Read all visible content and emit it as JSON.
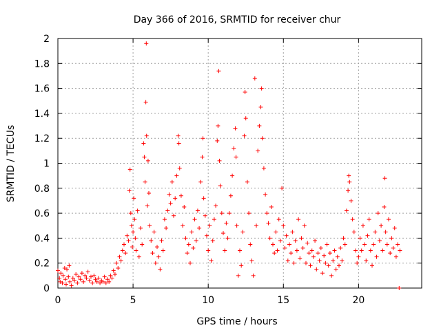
{
  "chart_data": {
    "type": "scatter",
    "title": "Day 366 of 2016, SRMTID for receiver chur",
    "xlabel": "GPS time / hours",
    "ylabel": "SRMTID / TECUs",
    "xlim": [
      0,
      24.2
    ],
    "ylim": [
      0,
      2
    ],
    "xticks": [
      0,
      5,
      10,
      15,
      20
    ],
    "xtick_labels": [
      "0",
      "5",
      "10",
      "15",
      "20"
    ],
    "yticks": [
      0,
      0.2,
      0.4,
      0.6,
      0.8,
      1,
      1.2,
      1.4,
      1.6,
      1.8,
      2
    ],
    "ytick_labels": [
      "0",
      "0.2",
      "0.4",
      "0.6",
      "0.8",
      "1",
      "1.2",
      "1.4",
      "1.6",
      "1.8",
      "2"
    ],
    "grid": true,
    "marker": "+",
    "color": "#ff0000",
    "series": [
      {
        "name": "SRMTID",
        "points": [
          [
            0.0,
            0.14
          ],
          [
            0.1,
            0.08
          ],
          [
            0.15,
            0.05
          ],
          [
            0.2,
            0.12
          ],
          [
            0.3,
            0.04
          ],
          [
            0.35,
            0.1
          ],
          [
            0.45,
            0.16
          ],
          [
            0.5,
            0.07
          ],
          [
            0.55,
            0.03
          ],
          [
            0.6,
            0.15
          ],
          [
            0.7,
            0.09
          ],
          [
            0.75,
            0.18
          ],
          [
            0.8,
            0.05
          ],
          [
            0.9,
            0.02
          ],
          [
            1.0,
            0.08
          ],
          [
            1.1,
            0.06
          ],
          [
            1.2,
            0.11
          ],
          [
            1.3,
            0.04
          ],
          [
            1.4,
            0.09
          ],
          [
            1.5,
            0.07
          ],
          [
            1.6,
            0.12
          ],
          [
            1.7,
            0.05
          ],
          [
            1.8,
            0.1
          ],
          [
            1.9,
            0.08
          ],
          [
            2.0,
            0.13
          ],
          [
            2.1,
            0.06
          ],
          [
            2.2,
            0.09
          ],
          [
            2.3,
            0.04
          ],
          [
            2.4,
            0.1
          ],
          [
            2.5,
            0.07
          ],
          [
            2.6,
            0.05
          ],
          [
            2.7,
            0.08
          ],
          [
            2.8,
            0.04
          ],
          [
            2.9,
            0.06
          ],
          [
            3.0,
            0.05
          ],
          [
            3.1,
            0.09
          ],
          [
            3.2,
            0.04
          ],
          [
            3.3,
            0.07
          ],
          [
            3.4,
            0.05
          ],
          [
            3.5,
            0.1
          ],
          [
            3.6,
            0.08
          ],
          [
            3.7,
            0.14
          ],
          [
            3.8,
            0.11
          ],
          [
            3.9,
            0.2
          ],
          [
            4.0,
            0.16
          ],
          [
            4.1,
            0.25
          ],
          [
            4.2,
            0.22
          ],
          [
            4.3,
            0.3
          ],
          [
            4.4,
            0.35
          ],
          [
            4.5,
            0.28
          ],
          [
            4.6,
            0.42
          ],
          [
            4.7,
            0.38
          ],
          [
            4.75,
            0.78
          ],
          [
            4.8,
            0.95
          ],
          [
            4.85,
            0.6
          ],
          [
            4.9,
            0.5
          ],
          [
            4.95,
            0.33
          ],
          [
            5.0,
            0.45
          ],
          [
            5.05,
            0.72
          ],
          [
            5.1,
            0.55
          ],
          [
            5.15,
            0.4
          ],
          [
            5.2,
            0.3
          ],
          [
            5.3,
            0.62
          ],
          [
            5.4,
            0.25
          ],
          [
            5.5,
            0.48
          ],
          [
            5.6,
            0.35
          ],
          [
            5.7,
            1.16
          ],
          [
            5.75,
            1.05
          ],
          [
            5.8,
            0.85
          ],
          [
            5.85,
            1.49
          ],
          [
            5.88,
            1.96
          ],
          [
            5.9,
            1.22
          ],
          [
            5.95,
            0.66
          ],
          [
            6.0,
            1.02
          ],
          [
            6.05,
            0.76
          ],
          [
            6.1,
            0.5
          ],
          [
            6.2,
            0.38
          ],
          [
            6.3,
            0.28
          ],
          [
            6.4,
            0.45
          ],
          [
            6.5,
            0.2
          ],
          [
            6.6,
            0.33
          ],
          [
            6.7,
            0.25
          ],
          [
            6.8,
            0.15
          ],
          [
            6.9,
            0.38
          ],
          [
            7.0,
            0.3
          ],
          [
            7.1,
            0.55
          ],
          [
            7.2,
            0.48
          ],
          [
            7.3,
            0.62
          ],
          [
            7.4,
            0.75
          ],
          [
            7.5,
            0.68
          ],
          [
            7.6,
            0.85
          ],
          [
            7.7,
            0.58
          ],
          [
            7.8,
            0.72
          ],
          [
            7.9,
            0.9
          ],
          [
            8.0,
            1.22
          ],
          [
            8.05,
            1.16
          ],
          [
            8.1,
            0.96
          ],
          [
            8.2,
            0.74
          ],
          [
            8.3,
            0.5
          ],
          [
            8.4,
            0.65
          ],
          [
            8.5,
            0.4
          ],
          [
            8.6,
            0.28
          ],
          [
            8.7,
            0.35
          ],
          [
            8.8,
            0.2
          ],
          [
            8.9,
            0.45
          ],
          [
            9.0,
            0.32
          ],
          [
            9.1,
            0.55
          ],
          [
            9.2,
            0.38
          ],
          [
            9.3,
            0.62
          ],
          [
            9.4,
            0.48
          ],
          [
            9.5,
            0.85
          ],
          [
            9.6,
            1.05
          ],
          [
            9.65,
            1.2
          ],
          [
            9.7,
            0.72
          ],
          [
            9.8,
            0.58
          ],
          [
            9.9,
            0.42
          ],
          [
            10.0,
            0.3
          ],
          [
            10.1,
            0.5
          ],
          [
            10.2,
            0.22
          ],
          [
            10.3,
            0.38
          ],
          [
            10.4,
            0.55
          ],
          [
            10.5,
            0.66
          ],
          [
            10.6,
            1.18
          ],
          [
            10.65,
            1.3
          ],
          [
            10.7,
            1.74
          ],
          [
            10.75,
            1.02
          ],
          [
            10.8,
            0.82
          ],
          [
            10.9,
            0.6
          ],
          [
            11.0,
            0.44
          ],
          [
            11.1,
            0.3
          ],
          [
            11.2,
            0.52
          ],
          [
            11.3,
            0.4
          ],
          [
            11.4,
            0.6
          ],
          [
            11.5,
            0.74
          ],
          [
            11.6,
            0.9
          ],
          [
            11.7,
            1.12
          ],
          [
            11.8,
            1.28
          ],
          [
            11.85,
            1.05
          ],
          [
            11.9,
            0.5
          ],
          [
            12.0,
            0.1
          ],
          [
            12.1,
            0.3
          ],
          [
            12.2,
            0.18
          ],
          [
            12.3,
            0.45
          ],
          [
            12.4,
            1.22
          ],
          [
            12.45,
            1.57
          ],
          [
            12.5,
            1.36
          ],
          [
            12.6,
            0.85
          ],
          [
            12.7,
            0.6
          ],
          [
            12.8,
            0.35
          ],
          [
            12.9,
            0.22
          ],
          [
            13.0,
            0.1
          ],
          [
            13.1,
            1.68
          ],
          [
            13.2,
            0.5
          ],
          [
            13.3,
            1.1
          ],
          [
            13.4,
            1.3
          ],
          [
            13.5,
            1.45
          ],
          [
            13.55,
            1.6
          ],
          [
            13.6,
            1.2
          ],
          [
            13.7,
            0.96
          ],
          [
            13.8,
            0.75
          ],
          [
            13.9,
            0.6
          ],
          [
            14.0,
            0.52
          ],
          [
            14.1,
            0.4
          ],
          [
            14.2,
            0.65
          ],
          [
            14.3,
            0.35
          ],
          [
            14.4,
            0.28
          ],
          [
            14.5,
            0.45
          ],
          [
            14.6,
            0.3
          ],
          [
            14.7,
            0.55
          ],
          [
            14.8,
            0.38
          ],
          [
            14.9,
            0.8
          ],
          [
            15.0,
            0.5
          ],
          [
            15.1,
            0.32
          ],
          [
            15.2,
            0.42
          ],
          [
            15.3,
            0.22
          ],
          [
            15.4,
            0.35
          ],
          [
            15.5,
            0.28
          ],
          [
            15.6,
            0.45
          ],
          [
            15.7,
            0.2
          ],
          [
            15.8,
            0.38
          ],
          [
            15.9,
            0.3
          ],
          [
            16.0,
            0.55
          ],
          [
            16.1,
            0.24
          ],
          [
            16.2,
            0.4
          ],
          [
            16.3,
            0.32
          ],
          [
            16.4,
            0.5
          ],
          [
            16.5,
            0.2
          ],
          [
            16.6,
            0.36
          ],
          [
            16.7,
            0.28
          ],
          [
            16.8,
            0.18
          ],
          [
            16.9,
            0.3
          ],
          [
            17.0,
            0.25
          ],
          [
            17.1,
            0.38
          ],
          [
            17.2,
            0.15
          ],
          [
            17.3,
            0.28
          ],
          [
            17.4,
            0.22
          ],
          [
            17.5,
            0.32
          ],
          [
            17.6,
            0.12
          ],
          [
            17.7,
            0.26
          ],
          [
            17.8,
            0.2
          ],
          [
            17.9,
            0.35
          ],
          [
            18.0,
            0.18
          ],
          [
            18.1,
            0.28
          ],
          [
            18.2,
            0.1
          ],
          [
            18.3,
            0.22
          ],
          [
            18.4,
            0.3
          ],
          [
            18.5,
            0.15
          ],
          [
            18.6,
            0.25
          ],
          [
            18.7,
            0.18
          ],
          [
            18.8,
            0.32
          ],
          [
            18.9,
            0.22
          ],
          [
            19.0,
            0.4
          ],
          [
            19.1,
            0.35
          ],
          [
            19.2,
            0.62
          ],
          [
            19.3,
            0.78
          ],
          [
            19.35,
            0.9
          ],
          [
            19.4,
            0.85
          ],
          [
            19.5,
            0.7
          ],
          [
            19.6,
            0.55
          ],
          [
            19.7,
            0.45
          ],
          [
            19.8,
            0.3
          ],
          [
            19.9,
            0.2
          ],
          [
            20.0,
            0.25
          ],
          [
            20.1,
            0.4
          ],
          [
            20.2,
            0.3
          ],
          [
            20.3,
            0.5
          ],
          [
            20.4,
            0.35
          ],
          [
            20.5,
            0.22
          ],
          [
            20.6,
            0.42
          ],
          [
            20.7,
            0.55
          ],
          [
            20.8,
            0.3
          ],
          [
            20.9,
            0.18
          ],
          [
            21.0,
            0.35
          ],
          [
            21.1,
            0.45
          ],
          [
            21.2,
            0.25
          ],
          [
            21.3,
            0.6
          ],
          [
            21.4,
            0.38
          ],
          [
            21.5,
            0.5
          ],
          [
            21.6,
            0.3
          ],
          [
            21.7,
            0.65
          ],
          [
            21.75,
            0.88
          ],
          [
            21.8,
            0.45
          ],
          [
            21.9,
            0.35
          ],
          [
            22.0,
            0.55
          ],
          [
            22.1,
            0.28
          ],
          [
            22.2,
            0.4
          ],
          [
            22.3,
            0.32
          ],
          [
            22.4,
            0.48
          ],
          [
            22.5,
            0.25
          ],
          [
            22.6,
            0.35
          ],
          [
            22.7,
            0.0
          ],
          [
            22.75,
            0.3
          ]
        ]
      }
    ]
  }
}
